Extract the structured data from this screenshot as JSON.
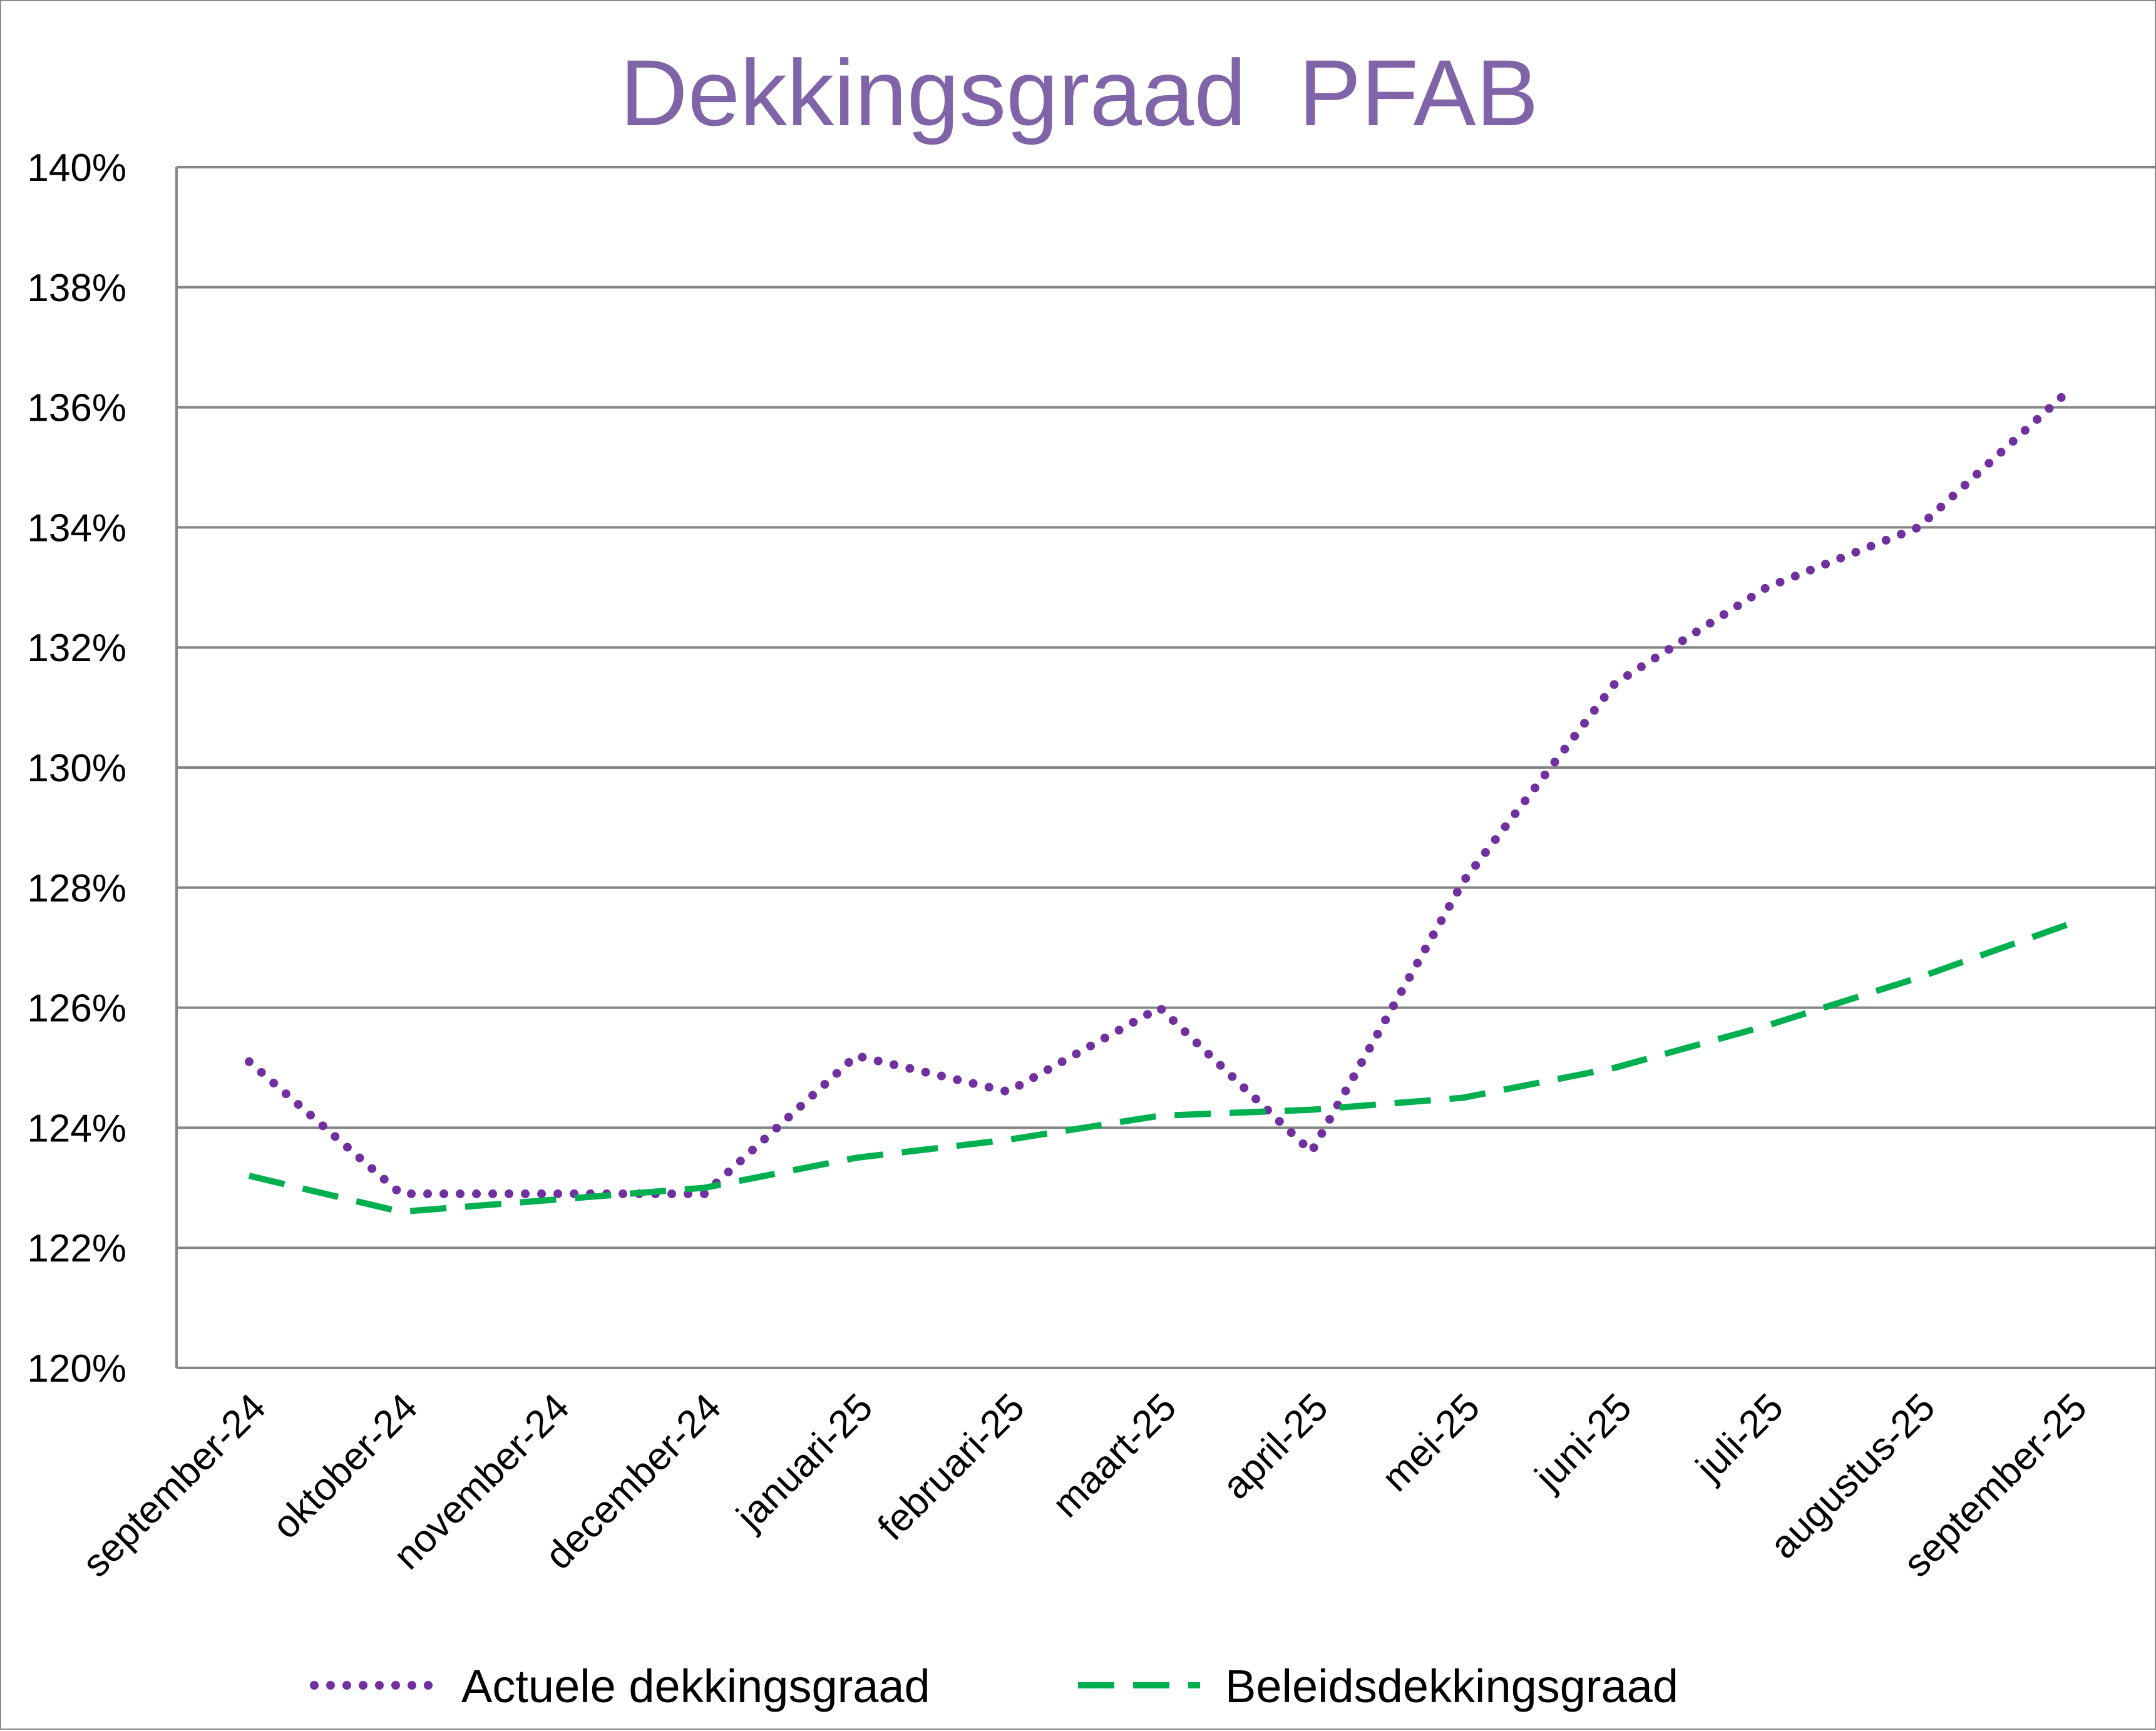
{
  "chart_data": {
    "type": "line",
    "title": "Dekkingsgraad  PFAB",
    "title_color": "#7f65a8",
    "xlabel": "",
    "ylabel": "",
    "ylim": [
      1.2,
      1.4
    ],
    "yticks": [
      1.2,
      1.22,
      1.24,
      1.26,
      1.28,
      1.3,
      1.32,
      1.34,
      1.36,
      1.38,
      1.4
    ],
    "ytick_labels": [
      "120%",
      "122%",
      "124%",
      "126%",
      "128%",
      "130%",
      "132%",
      "134%",
      "136%",
      "138%",
      "140%"
    ],
    "grid": true,
    "legend_position": "bottom",
    "categories": [
      "september-24",
      "oktober-24",
      "november-24",
      "december-24",
      "januari-25",
      "februari-25",
      "maart-25",
      "april-25",
      "mei-25",
      "juni-25",
      "juli-25",
      "augustus-25",
      "september-25"
    ],
    "series": [
      {
        "name": "Actuele dekkingsgraad",
        "color": "#7030a0",
        "style": "dotted",
        "values": [
          1.251,
          1.229,
          1.229,
          1.229,
          1.252,
          1.246,
          1.26,
          1.236,
          1.281,
          1.314,
          1.33,
          1.34,
          1.363
        ]
      },
      {
        "name": "Beleidsdekkingsgraad",
        "color": "#00b050",
        "style": "dashed",
        "values": [
          1.232,
          1.226,
          1.228,
          1.23,
          1.235,
          1.238,
          1.242,
          1.243,
          1.245,
          1.25,
          1.257,
          1.265,
          1.274
        ]
      }
    ]
  }
}
